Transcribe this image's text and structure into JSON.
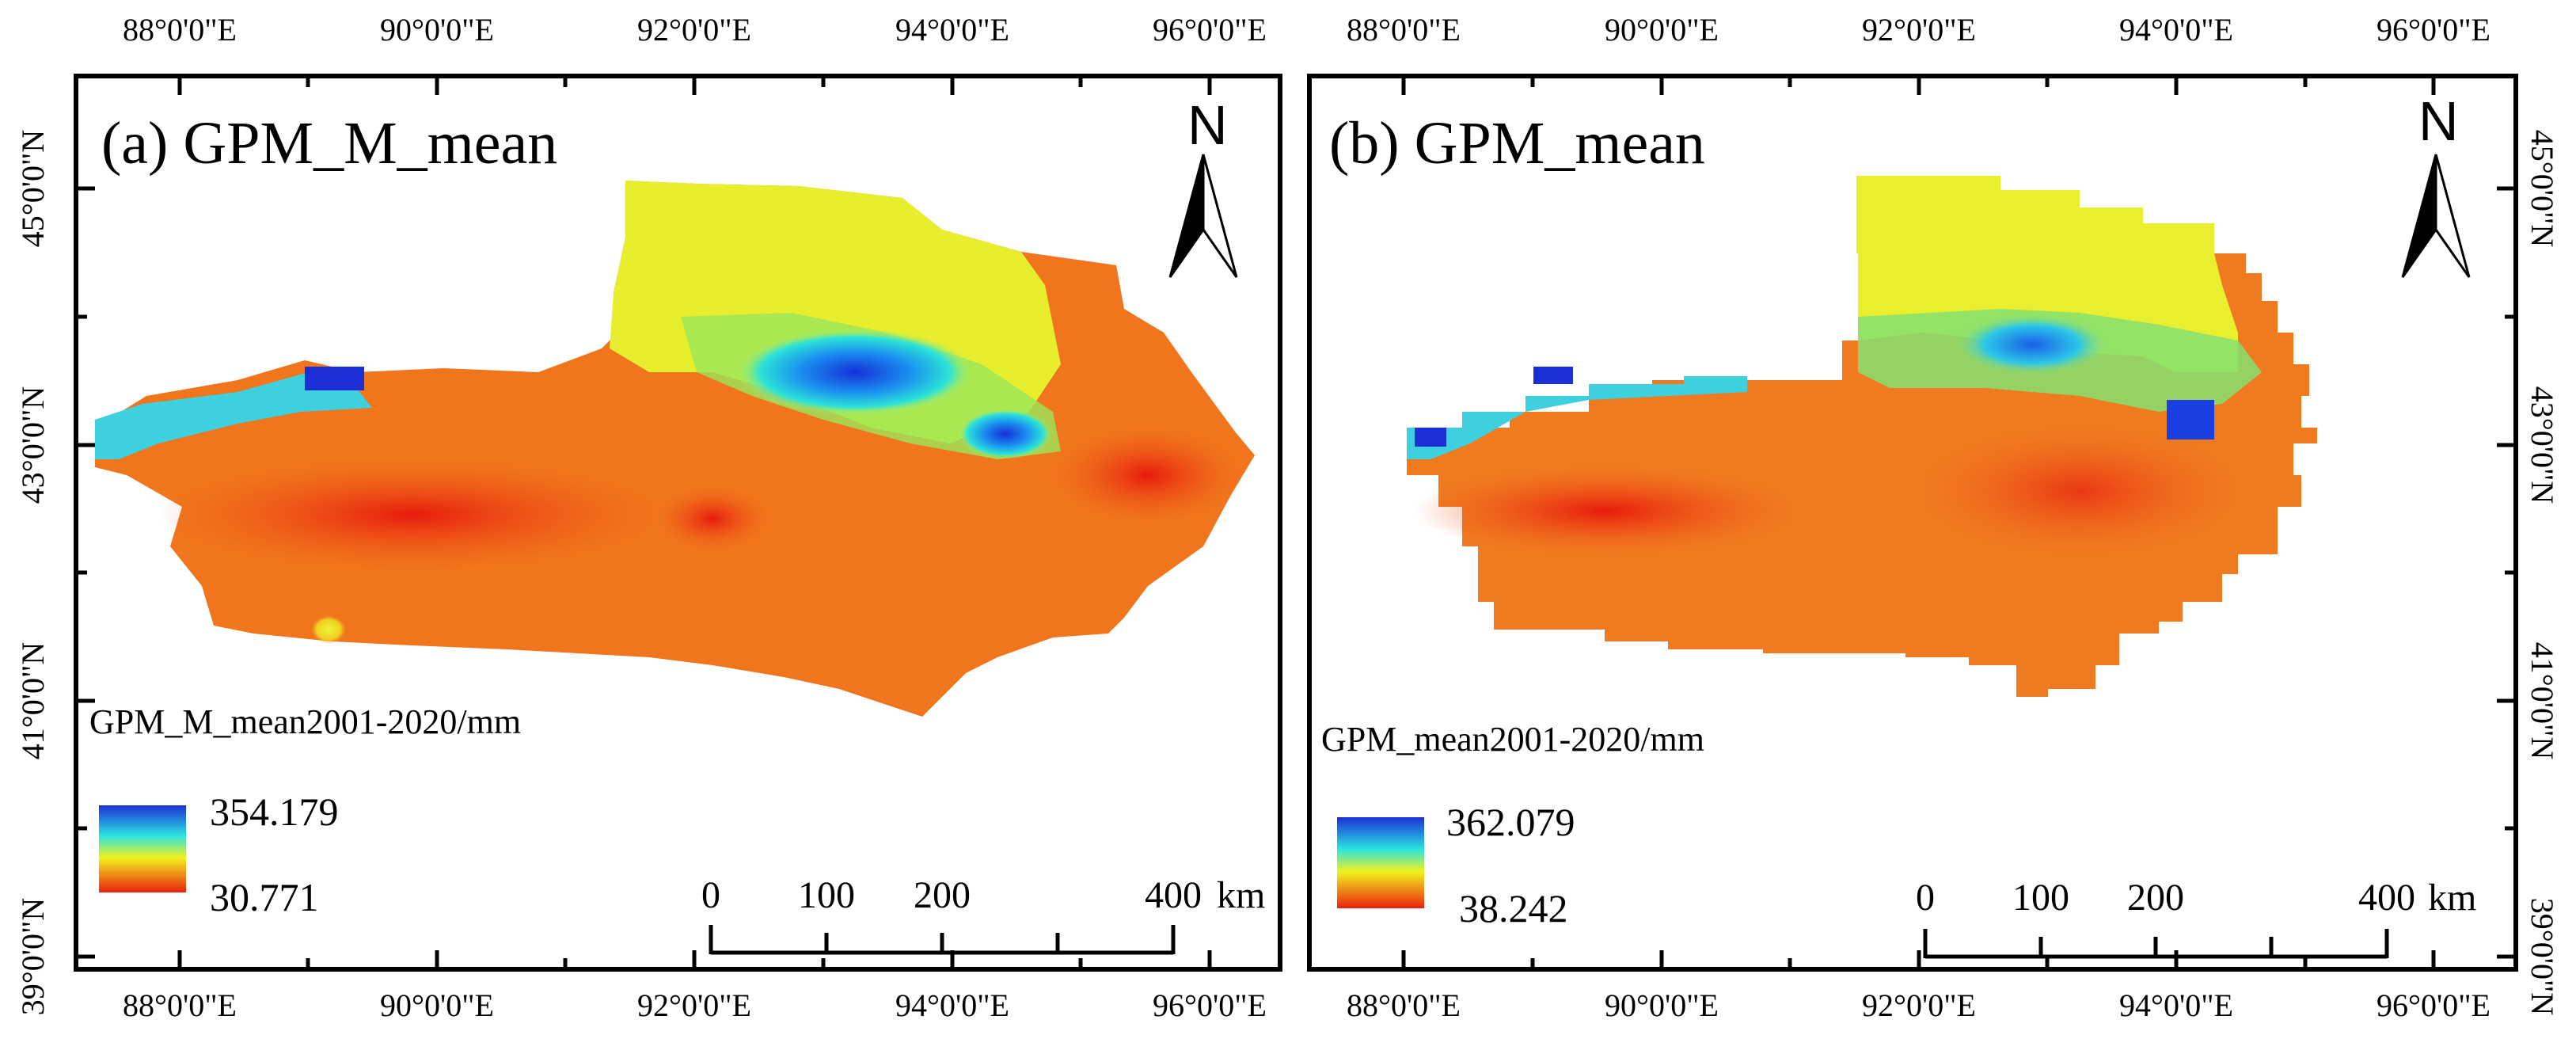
{
  "panels": {
    "a": {
      "title": "(a) GPM_M_mean",
      "legend_title": "GPM_M_mean2001-2020/mm",
      "legend_max": "354.179",
      "legend_min": "30.771"
    },
    "b": {
      "title": "(b) GPM_mean",
      "legend_title": "GPM_mean2001-2020/mm",
      "legend_max": "362.079",
      "legend_min": "38.242"
    }
  },
  "axes": {
    "lon_labels": [
      "88°0'0\"E",
      "90°0'0\"E",
      "92°0'0\"E",
      "94°0'0\"E",
      "96°0'0\"E"
    ],
    "lat_labels": [
      "45°0'0\"N",
      "43°0'0\"N",
      "41°0'0\"N",
      "39°0'0\"N"
    ]
  },
  "north_arrow": {
    "letter": "N",
    "icon": "north-arrow-icon"
  },
  "scale_bar": {
    "labels": [
      "0",
      "100",
      "200",
      "400"
    ],
    "unit": "km"
  },
  "colors": {
    "frame": "#000000",
    "ramp_high": "#1a2fd6",
    "ramp_mid": "#2be3e0",
    "ramp_yellow": "#f2f21d",
    "ramp_low": "#e8210f",
    "ramp_bulk": "#f07a20"
  }
}
